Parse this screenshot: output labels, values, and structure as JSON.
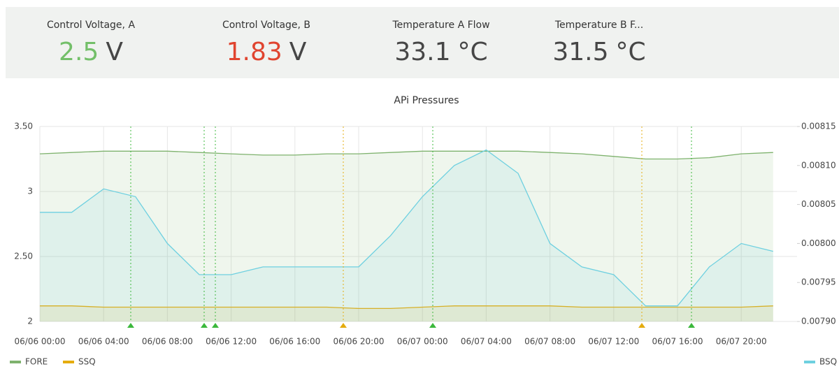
{
  "stats": [
    {
      "title": "Control Voltage, A",
      "value": 2.5,
      "unit": "V",
      "color": "#73bf69"
    },
    {
      "title": "Control Voltage, B",
      "value": 1.83,
      "unit": "V",
      "color": "#e0442f"
    },
    {
      "title": "Temperature A Flow",
      "value": 33.1,
      "unit": "°C",
      "color": "#464646"
    },
    {
      "title": "Temperature B F...",
      "value": 31.5,
      "unit": "°C",
      "color": "#464646"
    }
  ],
  "chart_data": {
    "type": "line",
    "title": "APi Pressures",
    "x": [
      "06/06 00:00",
      "06/06 02:00",
      "06/06 04:00",
      "06/06 06:00",
      "06/06 08:00",
      "06/06 10:00",
      "06/06 12:00",
      "06/06 14:00",
      "06/06 16:00",
      "06/06 18:00",
      "06/06 20:00",
      "06/06 22:00",
      "06/07 00:00",
      "06/07 02:00",
      "06/07 04:00",
      "06/07 06:00",
      "06/07 08:00",
      "06/07 10:00",
      "06/07 12:00",
      "06/07 14:00",
      "06/07 16:00",
      "06/07 18:00",
      "06/07 20:00",
      "06/07 22:00"
    ],
    "xlim": [
      "06/06 00:00",
      "06/07 23:30"
    ],
    "xticks": [
      "06/06 00:00",
      "06/06 04:00",
      "06/06 08:00",
      "06/06 12:00",
      "06/06 16:00",
      "06/06 20:00",
      "06/07 00:00",
      "06/07 04:00",
      "06/07 08:00",
      "06/07 12:00",
      "06/07 16:00",
      "06/07 20:00"
    ],
    "ylim": [
      2,
      3.5
    ],
    "yticks": [
      2,
      {
        "value": 2.5,
        "label": "2.50"
      },
      3,
      {
        "value": 3.5,
        "label": "3.50"
      }
    ],
    "y2lim": [
      0.0079,
      0.00815
    ],
    "y2ticks": [
      {
        "value": 0.0079,
        "label": "0.00790"
      },
      {
        "value": 0.00795,
        "label": "0.00795"
      },
      {
        "value": 0.008,
        "label": "0.00800"
      },
      {
        "value": 0.00805,
        "label": "0.00805"
      },
      {
        "value": 0.0081,
        "label": "0.00810"
      },
      {
        "value": 0.00815,
        "label": "0.00815"
      }
    ],
    "grid": true,
    "series": [
      {
        "name": "FORE",
        "color": "#7eb26d",
        "values": [
          3.29,
          3.3,
          3.31,
          3.31,
          3.31,
          3.3,
          3.29,
          3.28,
          3.28,
          3.29,
          3.29,
          3.3,
          3.31,
          3.31,
          3.31,
          3.31,
          3.3,
          3.29,
          3.27,
          3.25,
          3.25,
          3.26,
          3.29,
          3.3
        ]
      },
      {
        "name": "SSQ",
        "color": "#e5ac0e",
        "values": [
          2.12,
          2.12,
          2.11,
          2.11,
          2.11,
          2.11,
          2.11,
          2.11,
          2.11,
          2.11,
          2.1,
          2.1,
          2.11,
          2.12,
          2.12,
          2.12,
          2.12,
          2.11,
          2.11,
          2.11,
          2.11,
          2.11,
          2.11,
          2.12
        ]
      },
      {
        "name": "BSQ",
        "color": "#6ed0e0",
        "axis": "y2",
        "values": [
          0.00804,
          0.00804,
          0.00807,
          0.00806,
          0.008,
          0.00796,
          0.00796,
          0.00797,
          0.00797,
          0.00797,
          0.00797,
          0.00801,
          0.00806,
          0.0081,
          0.00812,
          0.00809,
          0.008,
          0.00797,
          0.00796,
          0.00792,
          0.00792,
          0.00797,
          0.008,
          0.00799
        ]
      }
    ]
  }
}
